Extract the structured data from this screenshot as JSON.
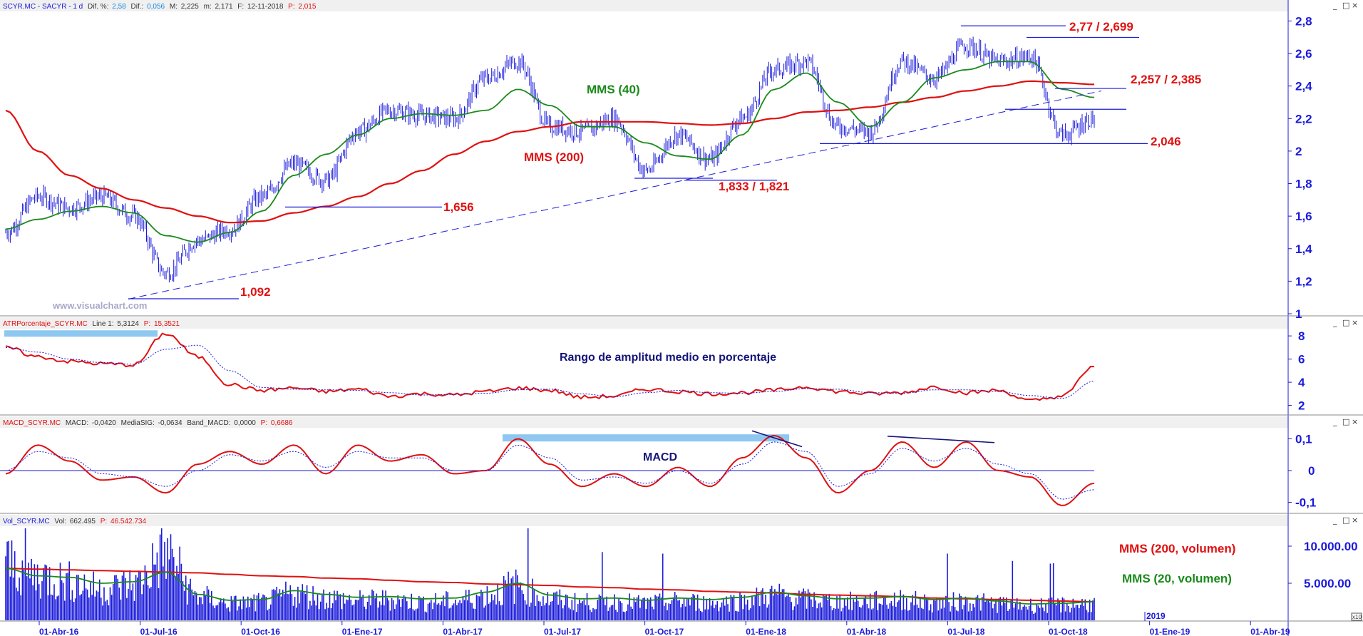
{
  "panels": {
    "price": {
      "header": {
        "symbol": "SCYR.MC - SACYR - 1 d",
        "dif_pct_label": "Dif. %:",
        "dif_pct": "2,58",
        "dif_label": "Dif.:",
        "dif": "0,056",
        "max_label": "M:",
        "max": "2,225",
        "min_label": "m:",
        "min": "2,171",
        "date_label": "F:",
        "date": "12-11-2018",
        "price_label": "P:",
        "price": "2,015"
      },
      "y_ticks": [
        "2,8",
        "2,6",
        "2,4",
        "2,2",
        "2",
        "1,8",
        "1,6",
        "1,4",
        "1,2",
        "1"
      ],
      "annotations": {
        "mms40": "MMS (40)",
        "mms200": "MMS (200)",
        "l1092": "1,092",
        "l1656": "1,656",
        "l1833": "1,833 / 1,821",
        "l2046": "2,046",
        "l2257": "2,257 / 2,385",
        "l277": "2,77 / 2,699"
      },
      "watermark": "www.visualchart.com"
    },
    "atr": {
      "header": {
        "name": "ATRPorcentaje_SCYR.MC",
        "line_label": "Line 1:",
        "line": "5,3124",
        "p_label": "P:",
        "p": "15,3521"
      },
      "y_ticks": [
        "8",
        "6",
        "4",
        "2"
      ],
      "title": "Rango de amplitud medio en porcentaje"
    },
    "macd": {
      "header": {
        "name": "MACD_SCYR.MC",
        "macd_label": "MACD:",
        "macd": "-0,0420",
        "sig_label": "MediaSIG:",
        "sig": "-0,0634",
        "band_label": "Band_MACD:",
        "band": "0,0000",
        "p_label": "P:",
        "p": "0,6686"
      },
      "y_ticks": [
        "0,1",
        "0",
        "-0,1"
      ],
      "title": "MACD"
    },
    "volume": {
      "header": {
        "name": "Vol_SCYR.MC",
        "vol_label": "Vol:",
        "vol": "662.495",
        "p_label": "P:",
        "p": "46.542.734"
      },
      "y_ticks": [
        "10.000.00",
        "5.000.00"
      ],
      "mms200": "MMS (200, volumen)",
      "mms20": "MMS (20, volumen)"
    }
  },
  "x_axis": {
    "labels": [
      "01-Abr-16",
      "01-Jul-16",
      "01-Oct-16",
      "01-Ene-17",
      "01-Abr-17",
      "01-Jul-17",
      "01-Oct-17",
      "01-Ene-18",
      "01-Abr-18",
      "01-Jul-18",
      "01-Oct-18",
      "01-Ene-19",
      "01-Abr-19"
    ],
    "year_marker": "2019",
    "zoom_badge": "x10"
  },
  "window_buttons": [
    "_",
    "□",
    "×"
  ],
  "colors": {
    "price_bars": "#1a1adb",
    "mms200": "#e01010",
    "mms40": "#1a8a1a",
    "highlight": "#8ec8f0",
    "axis_text": "#1a1adb",
    "header_red": "#e01010",
    "header_blue": "#1a1adb"
  },
  "chart_data": [
    {
      "type": "line",
      "title": "",
      "series": [
        {
          "name": "SCYR.MC",
          "x": [
            "2016-01",
            "2016-02",
            "2016-03",
            "2016-04",
            "2016-05",
            "2016-06",
            "2016-07",
            "2016-08",
            "2016-09",
            "2016-10",
            "2016-11",
            "2016-12",
            "2017-01",
            "2017-02",
            "2017-03",
            "2017-04",
            "2017-05",
            "2017-06",
            "2017-07",
            "2017-08",
            "2017-09",
            "2017-10",
            "2017-11",
            "2017-12",
            "2018-01",
            "2018-02",
            "2018-03",
            "2018-04",
            "2018-05",
            "2018-06",
            "2018-07",
            "2018-08",
            "2018-09",
            "2018-10",
            "2018-11"
          ],
          "values": [
            1.5,
            1.72,
            1.65,
            1.72,
            1.6,
            1.25,
            1.45,
            1.52,
            1.72,
            1.92,
            1.82,
            2.12,
            2.25,
            2.22,
            2.2,
            2.45,
            2.55,
            2.15,
            2.12,
            2.2,
            1.88,
            2.1,
            1.95,
            2.2,
            2.5,
            2.55,
            2.15,
            2.12,
            2.55,
            2.45,
            2.65,
            2.55,
            2.58,
            2.1,
            2.2
          ]
        },
        {
          "name": "MMS (40)",
          "values": [
            1.52,
            1.58,
            1.63,
            1.66,
            1.62,
            1.48,
            1.44,
            1.5,
            1.63,
            1.85,
            1.98,
            2.1,
            2.2,
            2.23,
            2.22,
            2.25,
            2.38,
            2.28,
            2.15,
            2.15,
            2.05,
            1.97,
            1.95,
            2.1,
            2.38,
            2.48,
            2.3,
            2.15,
            2.3,
            2.45,
            2.5,
            2.55,
            2.55,
            2.38,
            2.33
          ]
        },
        {
          "name": "MMS (200)",
          "values": [
            2.25,
            2.0,
            1.85,
            1.77,
            1.7,
            1.65,
            1.6,
            1.56,
            1.57,
            1.62,
            1.66,
            1.72,
            1.8,
            1.88,
            1.98,
            2.06,
            2.12,
            2.15,
            2.18,
            2.18,
            2.18,
            2.17,
            2.16,
            2.17,
            2.2,
            2.24,
            2.25,
            2.27,
            2.3,
            2.33,
            2.37,
            2.4,
            2.43,
            2.42,
            2.41
          ]
        }
      ],
      "levels": [
        1.092,
        1.656,
        1.833,
        1.821,
        2.046,
        2.257,
        2.385,
        2.77,
        2.699
      ],
      "ylim": [
        1,
        2.85
      ],
      "xlabel": "",
      "ylabel": ""
    },
    {
      "type": "line",
      "title": "Rango de amplitud medio en porcentaje",
      "series": [
        {
          "name": "ATRPorcentaje_SCYR.MC",
          "values": [
            7,
            6.2,
            5.8,
            5.6,
            5.5,
            8.2,
            6.2,
            3.8,
            3.3,
            3.5,
            3.2,
            3.4,
            2.8,
            3.0,
            2.9,
            3.2,
            3.5,
            3.3,
            2.7,
            2.8,
            3.4,
            3.2,
            3.0,
            3.1,
            3.3,
            3.6,
            3.2,
            3.0,
            3.1,
            3.6,
            3.1,
            3.3,
            2.4,
            2.8,
            5.4
          ]
        }
      ],
      "ylim": [
        1.3,
        8.5
      ],
      "xlabel": "",
      "ylabel": ""
    },
    {
      "type": "line",
      "title": "MACD",
      "series": [
        {
          "name": "MACD",
          "values": [
            -0.01,
            0.08,
            0.03,
            -0.03,
            -0.02,
            -0.07,
            0.02,
            0.06,
            0.02,
            0.08,
            -0.01,
            0.08,
            0.03,
            0.05,
            -0.01,
            0.0,
            0.1,
            0.02,
            -0.05,
            -0.01,
            -0.05,
            0.01,
            -0.05,
            0.04,
            0.11,
            0.04,
            -0.07,
            0.0,
            0.09,
            0.01,
            0.09,
            0.0,
            -0.02,
            -0.11,
            -0.04
          ]
        },
        {
          "name": "MediaSIG",
          "values": [
            0.0,
            0.06,
            0.04,
            -0.01,
            -0.02,
            -0.05,
            0.0,
            0.05,
            0.03,
            0.06,
            0.01,
            0.06,
            0.04,
            0.04,
            0.0,
            0.0,
            0.08,
            0.04,
            -0.03,
            -0.02,
            -0.04,
            0.0,
            -0.04,
            0.02,
            0.09,
            0.06,
            -0.05,
            -0.01,
            0.07,
            0.03,
            0.07,
            0.02,
            -0.01,
            -0.09,
            -0.06
          ]
        }
      ],
      "ylim": [
        -0.13,
        0.13
      ],
      "xlabel": "",
      "ylabel": ""
    },
    {
      "type": "bar",
      "title": "",
      "series": [
        {
          "name": "Vol_SCYR.MC",
          "values": [
            9500,
            7500,
            6500,
            5200,
            6000,
            11000,
            4000,
            2800,
            3000,
            4500,
            3800,
            3300,
            3500,
            3000,
            3200,
            4200,
            5800,
            3500,
            3000,
            3100,
            2800,
            3200,
            2900,
            3300,
            4200,
            3500,
            3100,
            3200,
            3400,
            2900,
            3200,
            2800,
            2500,
            2600,
            2800
          ]
        },
        {
          "name": "MMS (200, volumen)",
          "values": [
            7000,
            6900,
            6800,
            6700,
            6600,
            6500,
            6400,
            6200,
            6000,
            5900,
            5700,
            5600,
            5400,
            5200,
            5100,
            4900,
            4800,
            4700,
            4500,
            4400,
            4200,
            4100,
            3900,
            3800,
            3700,
            3500,
            3400,
            3300,
            3200,
            3000,
            2900,
            2800,
            2700,
            2600,
            2500
          ]
        },
        {
          "name": "MMS (20, volumen)",
          "values": [
            7000,
            6000,
            5800,
            5000,
            5200,
            6500,
            3500,
            2700,
            2800,
            4000,
            3500,
            3100,
            3200,
            2900,
            3000,
            3800,
            5000,
            3400,
            2900,
            3000,
            2700,
            3000,
            2800,
            3100,
            3800,
            3300,
            2900,
            3000,
            3200,
            2800,
            3000,
            2600,
            2200,
            2300,
            2500
          ]
        }
      ],
      "ylim": [
        0,
        12500
      ],
      "xlabel": "",
      "ylabel": ""
    }
  ]
}
